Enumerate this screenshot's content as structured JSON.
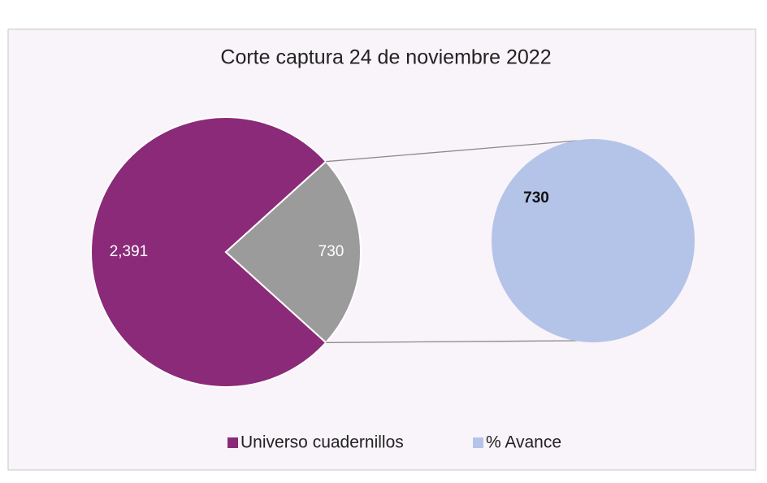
{
  "chart_data": {
    "type": "pie",
    "title": "Corte captura 24 de noviembre 2022",
    "categories": [
      "Universo cuadernillos",
      "% Avance"
    ],
    "values": [
      2391,
      730
    ],
    "value_labels": [
      "2,391",
      "730"
    ],
    "colors": [
      "#8b2a78",
      "#b4c4e8"
    ],
    "split_color": "#9b9b9b",
    "secondary": {
      "values": [
        730
      ]
    }
  }
}
